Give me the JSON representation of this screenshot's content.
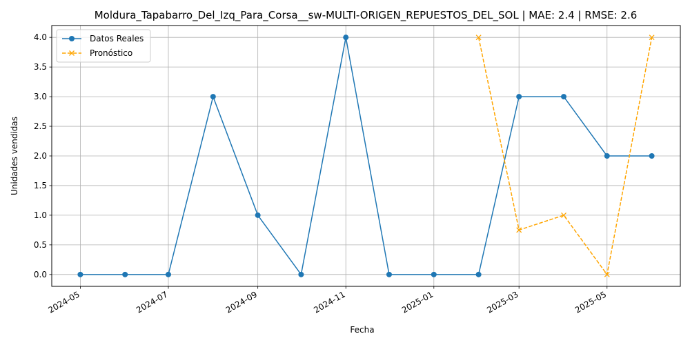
{
  "chart_data": {
    "type": "line",
    "title": "Moldura_Tapabarro_Del_Izq_Para_Corsa__sw-MULTI-ORIGEN_REPUESTOS_DEL_SOL | MAE: 2.4 | RMSE: 2.6",
    "xlabel": "Fecha",
    "ylabel": "Unidades vendidas",
    "ylim": [
      -0.2,
      4.2
    ],
    "grid": true,
    "legend_position": "top-left",
    "x_ticks": [
      "2024-05",
      "2024-07",
      "2024-09",
      "2024-11",
      "2025-01",
      "2025-03",
      "2025-05"
    ],
    "y_ticks": [
      "0.0",
      "0.5",
      "1.0",
      "1.5",
      "2.0",
      "2.5",
      "3.0",
      "3.5",
      "4.0"
    ],
    "series": [
      {
        "name": "Datos Reales",
        "color": "#1f77b4",
        "style": "solid",
        "marker": "circle",
        "x": [
          "2024-05-01",
          "2024-06-01",
          "2024-07-01",
          "2024-08-01",
          "2024-09-01",
          "2024-10-01",
          "2024-11-01",
          "2024-12-01",
          "2025-01-01",
          "2025-02-01",
          "2025-03-01",
          "2025-04-01",
          "2025-05-01",
          "2025-06-01"
        ],
        "values": [
          0,
          0,
          0,
          3,
          1,
          0,
          4,
          0,
          0,
          0,
          3,
          3,
          2,
          2
        ]
      },
      {
        "name": "Pronóstico",
        "color": "#ffa500",
        "style": "dashed",
        "marker": "x",
        "x": [
          "2025-02-01",
          "2025-03-01",
          "2025-04-01",
          "2025-05-01",
          "2025-06-01"
        ],
        "values": [
          4.0,
          0.75,
          1.0,
          0.0,
          4.0
        ]
      }
    ]
  }
}
